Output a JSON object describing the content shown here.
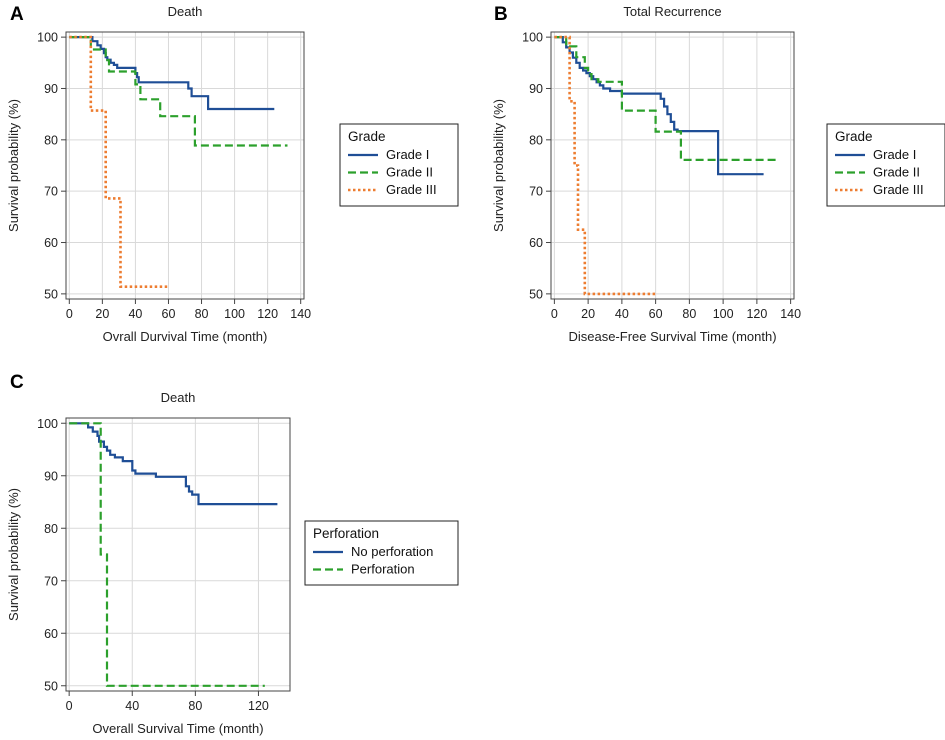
{
  "colors": {
    "blue": "#1f4e96",
    "green": "#2ca02c",
    "orange": "#ed7d31",
    "axis": "#444444",
    "grid": "#d9d9d9"
  },
  "chart_data": [
    {
      "panel": "A",
      "type": "line",
      "title": "Death",
      "xlabel": "Ovrall Durvival Time (month)",
      "ylabel": "Survival probability (%)",
      "xlim": [
        -2,
        142
      ],
      "ylim": [
        49,
        101
      ],
      "xticks": [
        "0",
        "20",
        "40",
        "60",
        "80",
        "100",
        "120",
        "140"
      ],
      "yticks": [
        "50",
        "60",
        "70",
        "80",
        "90",
        "100"
      ],
      "legend_title": "Grade",
      "series": [
        {
          "name": "Grade I",
          "style": "solid",
          "color": "blue",
          "x": [
            0,
            14,
            17,
            19,
            21,
            22,
            23,
            25,
            27,
            29,
            31,
            33,
            35,
            40,
            41,
            42,
            71,
            72,
            74,
            76,
            84,
            124
          ],
          "y": [
            100,
            99.2,
            98.4,
            97.7,
            96.9,
            96.1,
            95.6,
            95.0,
            94.6,
            94.0,
            94.0,
            94.0,
            94.0,
            93.0,
            92.2,
            91.2,
            91.2,
            90.0,
            88.5,
            88.5,
            86.0,
            86.0
          ]
        },
        {
          "name": "Grade II",
          "style": "dashed",
          "color": "green",
          "x": [
            0,
            13,
            20,
            22,
            24,
            27,
            40,
            43,
            47,
            55,
            76,
            132
          ],
          "y": [
            100,
            97.6,
            97.6,
            95.5,
            93.3,
            93.3,
            90.8,
            87.9,
            87.9,
            84.6,
            78.9,
            78.9
          ]
        },
        {
          "name": "Grade III",
          "style": "dotted",
          "color": "orange",
          "x": [
            0,
            12,
            13,
            21,
            22,
            30,
            31,
            60
          ],
          "y": [
            100,
            100,
            85.7,
            85.7,
            68.6,
            68.6,
            51.4,
            51.4
          ]
        }
      ]
    },
    {
      "panel": "B",
      "type": "line",
      "title": "Total Recurrence",
      "xlabel": "Disease-Free Survival Time (month)",
      "ylabel": "Survival probability (%)",
      "xlim": [
        -2,
        142
      ],
      "ylim": [
        49,
        101
      ],
      "xticks": [
        "0",
        "20",
        "40",
        "60",
        "80",
        "100",
        "120",
        "140"
      ],
      "yticks": [
        "50",
        "60",
        "70",
        "80",
        "90",
        "100"
      ],
      "legend_title": "Grade",
      "series": [
        {
          "name": "Grade I",
          "style": "solid",
          "color": "blue",
          "x": [
            0,
            5,
            7,
            9,
            11,
            13,
            15,
            17,
            19,
            21,
            23,
            25,
            27,
            29,
            33,
            35,
            40,
            45,
            48,
            52,
            63,
            65,
            67,
            69,
            71,
            73,
            75,
            97,
            98,
            124
          ],
          "y": [
            100,
            99.0,
            98.0,
            97.0,
            96.0,
            95.0,
            94.0,
            93.5,
            93.0,
            92.4,
            91.8,
            91.2,
            90.6,
            90.0,
            89.5,
            89.5,
            89.0,
            89.0,
            89.0,
            89.0,
            88.0,
            86.5,
            85.0,
            83.5,
            82.0,
            81.7,
            81.7,
            73.3,
            73.3,
            73.3
          ]
        },
        {
          "name": "Grade II",
          "style": "dashed",
          "color": "green",
          "x": [
            0,
            7,
            13,
            18,
            20,
            22,
            26,
            32,
            40,
            60,
            75,
            133
          ],
          "y": [
            100,
            98.2,
            96.1,
            94.0,
            92.8,
            91.8,
            91.3,
            91.3,
            85.7,
            81.6,
            76.1,
            76.1
          ]
        },
        {
          "name": "Grade III",
          "style": "dotted",
          "color": "orange",
          "x": [
            0,
            8,
            9,
            11,
            12,
            14,
            18,
            61
          ],
          "y": [
            100,
            100,
            87.5,
            87.5,
            75.0,
            62.5,
            50.0,
            50.0
          ]
        }
      ]
    },
    {
      "panel": "C",
      "type": "line",
      "title": "Death",
      "xlabel": "Overall Survival Time (month)",
      "ylabel": "Survival probability (%)",
      "xlim": [
        -2,
        140
      ],
      "ylim": [
        49,
        101
      ],
      "xticks": [
        "0",
        "40",
        "80",
        "120"
      ],
      "yticks": [
        "50",
        "60",
        "70",
        "80",
        "90",
        "100"
      ],
      "legend_title": "Perforation",
      "series": [
        {
          "name": "No perforation",
          "style": "solid",
          "color": "blue",
          "x": [
            0,
            12,
            15,
            18,
            19,
            22,
            24,
            26,
            29,
            31,
            34,
            40,
            42,
            46,
            55,
            74,
            76,
            78,
            82,
            132
          ],
          "y": [
            100,
            99.2,
            98.4,
            97.6,
            96.5,
            95.5,
            94.8,
            94.0,
            93.5,
            93.5,
            92.8,
            91.0,
            90.4,
            90.4,
            89.8,
            88.0,
            87.0,
            86.4,
            84.6,
            84.6
          ]
        },
        {
          "name": "Perforation",
          "style": "dashed",
          "color": "green",
          "x": [
            0,
            20,
            20,
            24,
            24,
            124
          ],
          "y": [
            100,
            100,
            75,
            75,
            50,
            50
          ]
        }
      ]
    }
  ],
  "panel_labels": [
    "A",
    "B",
    "C"
  ]
}
